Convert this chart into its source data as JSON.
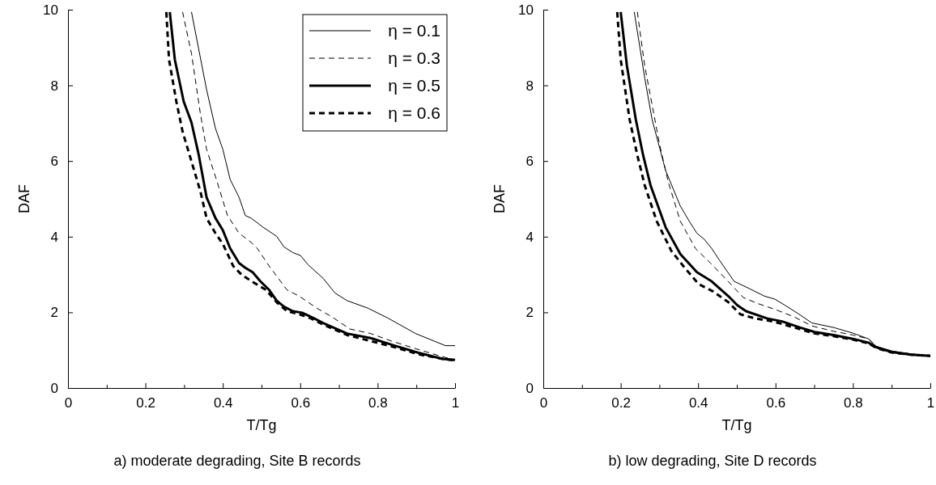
{
  "chart_data": [
    {
      "type": "line",
      "xlabel": "T/Tg",
      "ylabel": "DAF",
      "annotations": [
        "a) moderate degrading, Site B records"
      ],
      "xlim": [
        0,
        1
      ],
      "ylim": [
        0,
        10
      ],
      "xticks": [
        0,
        {
          "value": 0.1,
          "label": null
        },
        0.2,
        {
          "value": 0.3,
          "label": null
        },
        0.4,
        {
          "value": 0.5,
          "label": null
        },
        0.6,
        {
          "value": 0.7,
          "label": null
        },
        0.8,
        {
          "value": 0.9,
          "label": null
        },
        1
      ],
      "yticks": [
        0,
        2,
        4,
        6,
        8,
        10
      ],
      "grid": false,
      "legend": "top right",
      "marker": "none",
      "series": [
        {
          "name": "η = 0.1",
          "color": "#000000",
          "line_style": "solid",
          "x": [
            0.319,
            0.358,
            0.381,
            0.4,
            0.419,
            0.442,
            0.458,
            0.473,
            0.504,
            0.539,
            0.558,
            0.581,
            0.601,
            0.62,
            0.659,
            0.69,
            0.721,
            0.775,
            0.828,
            0.898,
            0.975,
            1.0
          ],
          "values": [
            9.94,
            7.89,
            6.86,
            6.31,
            5.51,
            5.04,
            4.56,
            4.49,
            4.25,
            4.01,
            3.73,
            3.58,
            3.5,
            3.26,
            2.9,
            2.51,
            2.31,
            2.11,
            1.84,
            1.44,
            1.12,
            1.12
          ]
        },
        {
          "name": "η = 0.3",
          "color": "#000000",
          "line_style": "dashed",
          "x": [
            0.296,
            0.319,
            0.342,
            0.358,
            0.381,
            0.412,
            0.442,
            0.473,
            0.489,
            0.52,
            0.566,
            0.597,
            0.643,
            0.682,
            0.728,
            0.782,
            0.836,
            0.898,
            0.96,
            1.0
          ],
          "values": [
            9.94,
            8.84,
            7.25,
            6.31,
            5.59,
            4.56,
            4.09,
            3.85,
            3.69,
            3.22,
            2.59,
            2.43,
            2.11,
            1.88,
            1.56,
            1.44,
            1.24,
            1.04,
            0.85,
            0.74
          ]
        },
        {
          "name": "η = 0.5",
          "color": "#000000",
          "line_style": "solid",
          "x": [
            0.263,
            0.276,
            0.299,
            0.319,
            0.338,
            0.358,
            0.381,
            0.4,
            0.419,
            0.442,
            0.458,
            0.477,
            0.497,
            0.52,
            0.539,
            0.558,
            0.581,
            0.605,
            0.636,
            0.659,
            0.721,
            0.782,
            0.844,
            0.906,
            0.968,
            1.0
          ],
          "values": [
            9.94,
            8.68,
            7.57,
            7.02,
            6.15,
            5.04,
            4.49,
            4.17,
            3.69,
            3.3,
            3.18,
            3.06,
            2.82,
            2.59,
            2.31,
            2.15,
            2.03,
            1.99,
            1.84,
            1.72,
            1.44,
            1.32,
            1.12,
            0.93,
            0.77,
            0.74
          ]
        },
        {
          "name": "η = 0.6",
          "color": "#000000",
          "line_style": "dashed",
          "x": [
            0.254,
            0.261,
            0.28,
            0.296,
            0.319,
            0.342,
            0.358,
            0.381,
            0.4,
            0.427,
            0.45,
            0.481,
            0.512,
            0.539,
            0.566,
            0.597,
            0.628,
            0.659,
            0.721,
            0.782,
            0.844,
            0.906,
            0.968,
            1.0
          ],
          "values": [
            9.94,
            8.68,
            7.57,
            6.78,
            5.99,
            5.2,
            4.49,
            4.09,
            3.81,
            3.22,
            2.98,
            2.78,
            2.59,
            2.27,
            2.03,
            1.95,
            1.84,
            1.68,
            1.4,
            1.24,
            1.08,
            0.89,
            0.77,
            0.73
          ]
        }
      ]
    },
    {
      "type": "line",
      "xlabel": "T/Tg",
      "ylabel": "DAF",
      "annotations": [
        "b) low degrading, Site D records"
      ],
      "xlim": [
        0,
        1
      ],
      "ylim": [
        0,
        10
      ],
      "xticks": [
        0,
        {
          "value": 0.1,
          "label": null
        },
        0.2,
        {
          "value": 0.3,
          "label": null
        },
        0.4,
        {
          "value": 0.5,
          "label": null
        },
        0.6,
        {
          "value": 0.7,
          "label": null
        },
        0.8,
        {
          "value": 0.9,
          "label": null
        },
        1
      ],
      "yticks": [
        0,
        2,
        4,
        6,
        8,
        10
      ],
      "grid": false,
      "marker": "none",
      "series": [
        {
          "color": "#000000",
          "line_style": "solid",
          "x": [
            0.235,
            0.262,
            0.281,
            0.316,
            0.354,
            0.377,
            0.397,
            0.416,
            0.435,
            0.455,
            0.493,
            0.532,
            0.571,
            0.598,
            0.624,
            0.655,
            0.694,
            0.75,
            0.8,
            0.84,
            0.86,
            0.9,
            0.95,
            1.0
          ],
          "values": [
            9.94,
            8.2,
            7.1,
            5.75,
            4.81,
            4.41,
            4.09,
            3.93,
            3.69,
            3.38,
            2.82,
            2.63,
            2.43,
            2.35,
            2.19,
            1.99,
            1.72,
            1.6,
            1.45,
            1.3,
            1.1,
            0.98,
            0.9,
            0.85
          ]
        },
        {
          "color": "#000000",
          "line_style": "dashed",
          "x": [
            0.243,
            0.262,
            0.3,
            0.323,
            0.354,
            0.393,
            0.432,
            0.47,
            0.517,
            0.555,
            0.601,
            0.648,
            0.694,
            0.75,
            0.8,
            0.84,
            0.86,
            0.9,
            0.95,
            1.0
          ],
          "values": [
            9.94,
            8.52,
            6.46,
            5.44,
            4.41,
            3.69,
            3.3,
            2.9,
            2.39,
            2.23,
            2.07,
            1.88,
            1.64,
            1.5,
            1.4,
            1.3,
            1.1,
            0.97,
            0.9,
            0.85
          ]
        },
        {
          "color": "#000000",
          "line_style": "solid",
          "x": [
            0.2,
            0.216,
            0.239,
            0.258,
            0.277,
            0.316,
            0.354,
            0.397,
            0.435,
            0.478,
            0.501,
            0.524,
            0.578,
            0.617,
            0.663,
            0.701,
            0.75,
            0.8,
            0.84,
            0.86,
            0.9,
            0.95,
            1.0
          ],
          "values": [
            9.94,
            8.52,
            7.1,
            6.15,
            5.36,
            4.25,
            3.54,
            3.06,
            2.82,
            2.43,
            2.19,
            2.03,
            1.84,
            1.76,
            1.6,
            1.48,
            1.4,
            1.3,
            1.2,
            1.08,
            0.95,
            0.88,
            0.85
          ]
        },
        {
          "color": "#000000",
          "line_style": "dashed",
          "x": [
            0.191,
            0.2,
            0.223,
            0.243,
            0.262,
            0.293,
            0.331,
            0.362,
            0.401,
            0.439,
            0.478,
            0.509,
            0.547,
            0.594,
            0.648,
            0.702,
            0.75,
            0.8,
            0.84,
            0.86,
            0.9,
            0.95,
            1.0
          ],
          "values": [
            9.94,
            8.68,
            7.1,
            6.15,
            5.36,
            4.41,
            3.62,
            3.22,
            2.75,
            2.55,
            2.27,
            1.95,
            1.84,
            1.76,
            1.6,
            1.44,
            1.37,
            1.28,
            1.18,
            1.06,
            0.94,
            0.88,
            0.85
          ]
        }
      ]
    }
  ]
}
